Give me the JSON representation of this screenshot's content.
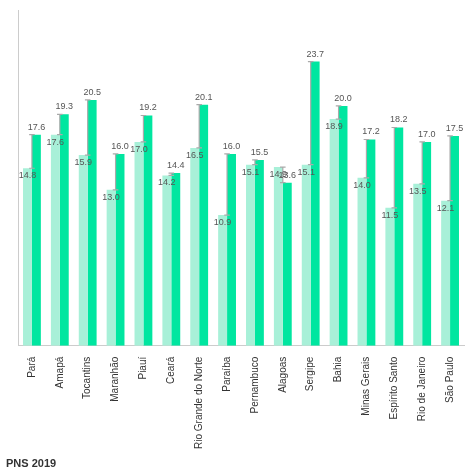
{
  "chart_data": {
    "type": "bar",
    "categories": [
      "Pará",
      "Amapá",
      "Tocantins",
      "Maranhão",
      "Piauí",
      "Ceará",
      "Rio Grande do Norte",
      "Paraíba",
      "Pernambuco",
      "Alagoas",
      "Sergipe",
      "Bahia",
      "Minas Gerais",
      "Espírito Santo",
      "Rio de Janeiro",
      "São Paulo"
    ],
    "series": [
      {
        "color": "#a8f0d8",
        "values": [
          14.8,
          17.6,
          15.9,
          13.0,
          17.0,
          14.2,
          16.5,
          10.9,
          15.1,
          14.9,
          15.1,
          18.9,
          14.0,
          11.5,
          13.5,
          12.1
        ],
        "value_labels": [
          "14.8",
          "17.6",
          "15.9",
          "13.0",
          "17.0",
          "14.2",
          "16.5",
          "10.9",
          "15.1",
          "14.9",
          "15.1",
          "18.9",
          "14.0",
          "11.5",
          "13.5",
          "12.1"
        ]
      },
      {
        "color": "#00e6a0",
        "values": [
          17.6,
          19.3,
          20.5,
          16.0,
          19.2,
          14.4,
          20.1,
          16.0,
          15.5,
          13.6,
          23.7,
          20.0,
          17.2,
          18.2,
          17.0,
          17.5
        ],
        "value_labels": [
          "17.6",
          "19.3",
          "20.5",
          "16.0",
          "19.2",
          "14.4",
          "20.1",
          "16.0",
          "15.5",
          "13.6",
          "23.7",
          "20.0",
          "17.2",
          "18.2",
          "17.0",
          "17.5"
        ],
        "error_low": [
          14.8,
          17.6,
          15.9,
          13.0,
          17.0,
          14.2,
          16.5,
          10.9,
          15.1,
          14.9,
          15.1,
          18.9,
          14.0,
          11.5,
          13.5,
          12.1
        ]
      }
    ],
    "ylim": [
      0,
      28
    ],
    "grid": false,
    "data_labels": true,
    "tick_labels": "x",
    "annotations": [
      "PNS 2019"
    ]
  }
}
